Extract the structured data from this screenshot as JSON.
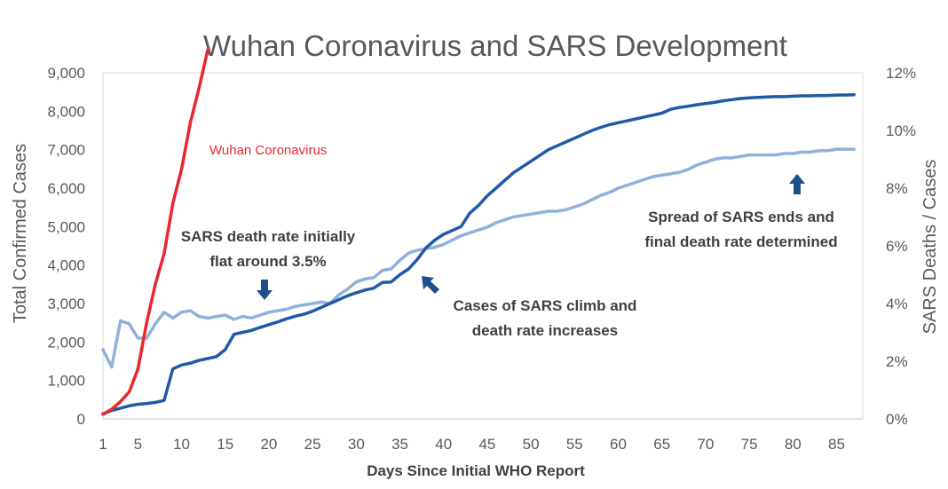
{
  "chart_data": {
    "type": "line",
    "title": "Wuhan Coronavirus and SARS Development",
    "xlabel": "Days Since Initial WHO Report",
    "ylabel": "Total Confirmed Cases",
    "y2label": "SARS Deaths / Cases",
    "xlim": [
      1,
      88
    ],
    "ylim": [
      0,
      9000
    ],
    "y2lim": [
      0,
      12
    ],
    "x_ticks": [
      1,
      5,
      10,
      15,
      20,
      25,
      30,
      35,
      40,
      45,
      50,
      55,
      60,
      65,
      70,
      75,
      80,
      85
    ],
    "y_ticks": [
      "0",
      "1,000",
      "2,000",
      "3,000",
      "4,000",
      "5,000",
      "6,000",
      "7,000",
      "8,000",
      "9,000"
    ],
    "y_tick_values": [
      0,
      1000,
      2000,
      3000,
      4000,
      5000,
      6000,
      7000,
      8000,
      9000
    ],
    "y2_ticks": [
      "0%",
      "2%",
      "4%",
      "6%",
      "8%",
      "10%",
      "12%"
    ],
    "y2_tick_values": [
      0,
      2,
      4,
      6,
      8,
      10,
      12
    ],
    "grid": false,
    "legend": "none",
    "series": [
      {
        "name": "Wuhan Coronavirus",
        "axis": "left",
        "color": "#e8262e",
        "points": [
          [
            1,
            120
          ],
          [
            2,
            250
          ],
          [
            3,
            450
          ],
          [
            4,
            700
          ],
          [
            5,
            1300
          ],
          [
            6,
            2500
          ],
          [
            7,
            3500
          ],
          [
            8,
            4300
          ],
          [
            9,
            5600
          ],
          [
            10,
            6500
          ],
          [
            11,
            7700
          ],
          [
            12,
            8600
          ],
          [
            13,
            9600
          ]
        ]
      },
      {
        "axis": "left",
        "color": "#1f5aa6",
        "points": [
          [
            1,
            130
          ],
          [
            2,
            220
          ],
          [
            3,
            280
          ],
          [
            4,
            340
          ],
          [
            5,
            380
          ],
          [
            6,
            400
          ],
          [
            7,
            430
          ],
          [
            8,
            480
          ],
          [
            9,
            1300
          ],
          [
            10,
            1400
          ],
          [
            11,
            1450
          ],
          [
            12,
            1520
          ],
          [
            13,
            1570
          ],
          [
            14,
            1620
          ],
          [
            15,
            1800
          ],
          [
            16,
            2200
          ],
          [
            17,
            2250
          ],
          [
            18,
            2300
          ],
          [
            19,
            2380
          ],
          [
            20,
            2450
          ],
          [
            21,
            2520
          ],
          [
            22,
            2600
          ],
          [
            23,
            2670
          ],
          [
            24,
            2720
          ],
          [
            25,
            2800
          ],
          [
            26,
            2900
          ],
          [
            27,
            3000
          ],
          [
            28,
            3100
          ],
          [
            29,
            3200
          ],
          [
            30,
            3280
          ],
          [
            31,
            3350
          ],
          [
            32,
            3400
          ],
          [
            33,
            3550
          ],
          [
            34,
            3560
          ],
          [
            35,
            3750
          ],
          [
            36,
            3900
          ],
          [
            37,
            4150
          ],
          [
            38,
            4450
          ],
          [
            39,
            4650
          ],
          [
            40,
            4800
          ],
          [
            41,
            4900
          ],
          [
            42,
            5000
          ],
          [
            43,
            5350
          ],
          [
            44,
            5550
          ],
          [
            45,
            5800
          ],
          [
            46,
            6000
          ],
          [
            47,
            6200
          ],
          [
            48,
            6400
          ],
          [
            49,
            6550
          ],
          [
            50,
            6700
          ],
          [
            51,
            6850
          ],
          [
            52,
            7000
          ],
          [
            53,
            7100
          ],
          [
            54,
            7200
          ],
          [
            55,
            7300
          ],
          [
            56,
            7400
          ],
          [
            57,
            7500
          ],
          [
            58,
            7580
          ],
          [
            59,
            7650
          ],
          [
            60,
            7700
          ],
          [
            61,
            7750
          ],
          [
            62,
            7800
          ],
          [
            63,
            7850
          ],
          [
            64,
            7900
          ],
          [
            65,
            7950
          ],
          [
            66,
            8050
          ],
          [
            67,
            8100
          ],
          [
            68,
            8130
          ],
          [
            69,
            8170
          ],
          [
            70,
            8200
          ],
          [
            71,
            8230
          ],
          [
            72,
            8270
          ],
          [
            73,
            8300
          ],
          [
            74,
            8330
          ],
          [
            75,
            8350
          ],
          [
            76,
            8360
          ],
          [
            77,
            8370
          ],
          [
            78,
            8380
          ],
          [
            79,
            8380
          ],
          [
            80,
            8390
          ],
          [
            81,
            8400
          ],
          [
            82,
            8400
          ],
          [
            83,
            8410
          ],
          [
            84,
            8410
          ],
          [
            85,
            8420
          ],
          [
            86,
            8420
          ],
          [
            87,
            8430
          ]
        ]
      },
      {
        "axis": "right",
        "color": "#8fb1dc",
        "points": [
          [
            1,
            2.4
          ],
          [
            2,
            1.8
          ],
          [
            3,
            3.4
          ],
          [
            4,
            3.3
          ],
          [
            5,
            2.8
          ],
          [
            6,
            2.8
          ],
          [
            7,
            3.3
          ],
          [
            8,
            3.7
          ],
          [
            9,
            3.5
          ],
          [
            10,
            3.7
          ],
          [
            11,
            3.75
          ],
          [
            12,
            3.55
          ],
          [
            13,
            3.5
          ],
          [
            14,
            3.55
          ],
          [
            15,
            3.6
          ],
          [
            16,
            3.45
          ],
          [
            17,
            3.55
          ],
          [
            18,
            3.5
          ],
          [
            19,
            3.6
          ],
          [
            20,
            3.7
          ],
          [
            21,
            3.75
          ],
          [
            22,
            3.8
          ],
          [
            23,
            3.9
          ],
          [
            24,
            3.95
          ],
          [
            25,
            4.0
          ],
          [
            26,
            4.05
          ],
          [
            27,
            4.0
          ],
          [
            28,
            4.3
          ],
          [
            29,
            4.5
          ],
          [
            30,
            4.75
          ],
          [
            31,
            4.85
          ],
          [
            32,
            4.9
          ],
          [
            33,
            5.15
          ],
          [
            34,
            5.2
          ],
          [
            35,
            5.5
          ],
          [
            36,
            5.75
          ],
          [
            37,
            5.85
          ],
          [
            38,
            5.9
          ],
          [
            39,
            5.95
          ],
          [
            40,
            6.05
          ],
          [
            41,
            6.2
          ],
          [
            42,
            6.35
          ],
          [
            43,
            6.45
          ],
          [
            44,
            6.55
          ],
          [
            45,
            6.65
          ],
          [
            46,
            6.8
          ],
          [
            47,
            6.9
          ],
          [
            48,
            7.0
          ],
          [
            49,
            7.05
          ],
          [
            50,
            7.1
          ],
          [
            51,
            7.15
          ],
          [
            52,
            7.2
          ],
          [
            53,
            7.2
          ],
          [
            54,
            7.25
          ],
          [
            55,
            7.35
          ],
          [
            56,
            7.45
          ],
          [
            57,
            7.6
          ],
          [
            58,
            7.75
          ],
          [
            59,
            7.85
          ],
          [
            60,
            8.0
          ],
          [
            61,
            8.1
          ],
          [
            62,
            8.2
          ],
          [
            63,
            8.3
          ],
          [
            64,
            8.4
          ],
          [
            65,
            8.45
          ],
          [
            66,
            8.5
          ],
          [
            67,
            8.55
          ],
          [
            68,
            8.65
          ],
          [
            69,
            8.8
          ],
          [
            70,
            8.9
          ],
          [
            71,
            9.0
          ],
          [
            72,
            9.05
          ],
          [
            73,
            9.05
          ],
          [
            74,
            9.1
          ],
          [
            75,
            9.15
          ],
          [
            76,
            9.15
          ],
          [
            77,
            9.15
          ],
          [
            78,
            9.15
          ],
          [
            79,
            9.2
          ],
          [
            80,
            9.2
          ],
          [
            81,
            9.25
          ],
          [
            82,
            9.25
          ],
          [
            83,
            9.3
          ],
          [
            84,
            9.3
          ],
          [
            85,
            9.35
          ],
          [
            86,
            9.35
          ],
          [
            87,
            9.35
          ]
        ]
      }
    ],
    "labels": {
      "wuhan": "Wuhan Coronavirus"
    },
    "annotations": [
      {
        "lines": [
          "SARS death rate initially",
          "flat around 3.5%"
        ],
        "arrow": "down"
      },
      {
        "lines": [
          "Cases of SARS climb and",
          "death rate increases"
        ],
        "arrow": "up-left"
      },
      {
        "lines": [
          "Spread of SARS ends and",
          "final death rate determined"
        ],
        "arrow": "up"
      }
    ]
  }
}
